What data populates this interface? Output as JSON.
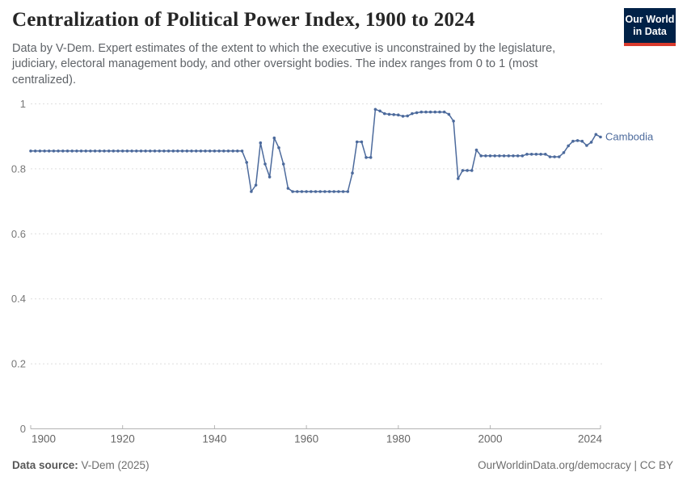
{
  "header": {
    "title": "Centralization of Political Power Index, 1900 to 2024",
    "subtitle": "Data by V-Dem. Expert estimates of the extent to which the executive is unconstrained by the legislature, judiciary, electoral management body, and other oversight bodies. The index ranges from 0 to 1 (most centralized)."
  },
  "logo": {
    "line1": "Our World",
    "line2": "in Data",
    "bg_color": "#002147",
    "bar_color": "#d93a2d"
  },
  "chart_data": {
    "type": "line",
    "title": "Centralization of Political Power Index, 1900 to 2024",
    "entity_label": "Cambodia",
    "line_color": "#4C6A9C",
    "grid": true,
    "legend_position": "end-of-line",
    "xlabel": "",
    "ylabel": "",
    "xlim": [
      1900,
      2024
    ],
    "ylim": [
      0,
      1
    ],
    "xticks": [
      1900,
      1920,
      1940,
      1960,
      1980,
      2000,
      2024
    ],
    "yticks": [
      0,
      0.2,
      0.4,
      0.6,
      0.8,
      1
    ],
    "x": [
      1900,
      1901,
      1902,
      1903,
      1904,
      1905,
      1906,
      1907,
      1908,
      1909,
      1910,
      1911,
      1912,
      1913,
      1914,
      1915,
      1916,
      1917,
      1918,
      1919,
      1920,
      1921,
      1922,
      1923,
      1924,
      1925,
      1926,
      1927,
      1928,
      1929,
      1930,
      1931,
      1932,
      1933,
      1934,
      1935,
      1936,
      1937,
      1938,
      1939,
      1940,
      1941,
      1942,
      1943,
      1944,
      1945,
      1946,
      1947,
      1948,
      1949,
      1950,
      1951,
      1952,
      1953,
      1954,
      1955,
      1956,
      1957,
      1958,
      1959,
      1960,
      1961,
      1962,
      1963,
      1964,
      1965,
      1966,
      1967,
      1968,
      1969,
      1970,
      1971,
      1972,
      1973,
      1974,
      1975,
      1976,
      1977,
      1978,
      1979,
      1980,
      1981,
      1982,
      1983,
      1984,
      1985,
      1986,
      1987,
      1988,
      1989,
      1990,
      1991,
      1992,
      1993,
      1994,
      1995,
      1996,
      1997,
      1998,
      1999,
      2000,
      2001,
      2002,
      2003,
      2004,
      2005,
      2006,
      2007,
      2008,
      2009,
      2010,
      2011,
      2012,
      2013,
      2014,
      2015,
      2016,
      2017,
      2018,
      2019,
      2020,
      2021,
      2022,
      2023,
      2024
    ],
    "values": [
      0.855,
      0.855,
      0.855,
      0.855,
      0.855,
      0.855,
      0.855,
      0.855,
      0.855,
      0.855,
      0.855,
      0.855,
      0.855,
      0.855,
      0.855,
      0.855,
      0.855,
      0.855,
      0.855,
      0.855,
      0.855,
      0.855,
      0.855,
      0.855,
      0.855,
      0.855,
      0.855,
      0.855,
      0.855,
      0.855,
      0.855,
      0.855,
      0.855,
      0.855,
      0.855,
      0.855,
      0.855,
      0.855,
      0.855,
      0.855,
      0.855,
      0.855,
      0.855,
      0.855,
      0.855,
      0.855,
      0.855,
      0.82,
      0.73,
      0.75,
      0.88,
      0.815,
      0.775,
      0.895,
      0.865,
      0.815,
      0.74,
      0.73,
      0.73,
      0.73,
      0.73,
      0.73,
      0.73,
      0.73,
      0.73,
      0.73,
      0.73,
      0.73,
      0.73,
      0.73,
      0.787,
      0.883,
      0.883,
      0.835,
      0.835,
      0.983,
      0.978,
      0.97,
      0.968,
      0.967,
      0.966,
      0.962,
      0.963,
      0.97,
      0.973,
      0.975,
      0.975,
      0.975,
      0.975,
      0.975,
      0.975,
      0.968,
      0.947,
      0.77,
      0.795,
      0.795,
      0.795,
      0.858,
      0.84,
      0.84,
      0.84,
      0.84,
      0.84,
      0.84,
      0.84,
      0.84,
      0.84,
      0.84,
      0.845,
      0.845,
      0.845,
      0.845,
      0.845,
      0.837,
      0.837,
      0.837,
      0.85,
      0.871,
      0.885,
      0.887,
      0.885,
      0.872,
      0.882,
      0.906,
      0.898
    ]
  },
  "footer": {
    "source_label": "Data source:",
    "source_value": " V-Dem (2025)",
    "credit": "OurWorldinData.org/democracy | CC BY"
  }
}
